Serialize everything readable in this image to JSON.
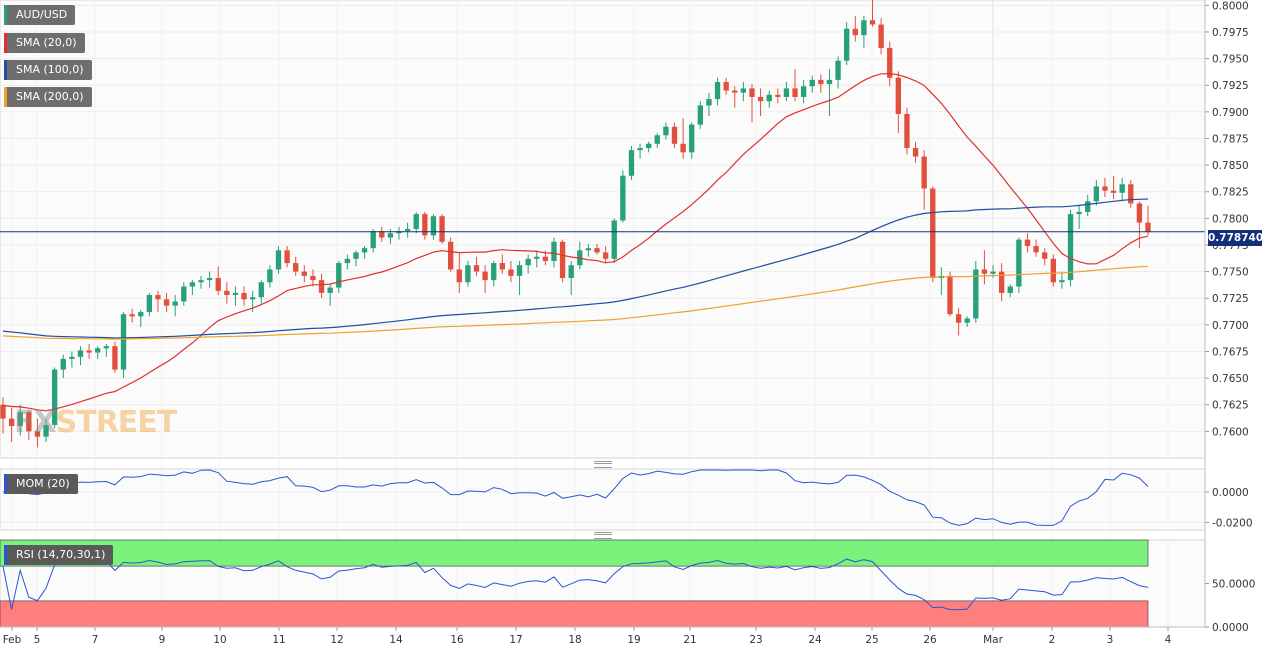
{
  "symbol": "AUD/USD",
  "legend": [
    {
      "label": "SMA (20,0)",
      "color": "#e03030"
    },
    {
      "label": "SMA (100,0)",
      "color": "#1f4f9e"
    },
    {
      "label": "SMA (200,0)",
      "color": "#f0a030"
    }
  ],
  "current_price_label": "0.778740",
  "watermark": {
    "part1": "FX",
    "part2": "STREET"
  },
  "colors": {
    "up": "#26a17a",
    "down": "#e0503c",
    "sma20": "#e03030",
    "sma100": "#1f4f9e",
    "sma200": "#f0a030",
    "mom": "#2b56d1",
    "rsi": "#2b56d1",
    "rsi_overbought": "#7cf27c",
    "rsi_oversold": "#ff7f7f"
  },
  "chart_data": [
    {
      "type": "candlestick",
      "title": "AUD/USD",
      "ylim": [
        0.7575,
        0.8005
      ],
      "yticks": [
        "0.8000",
        "0.7975",
        "0.7950",
        "0.7925",
        "0.7900",
        "0.7875",
        "0.7850",
        "0.7825",
        "0.7800",
        "0.7775",
        "0.7750",
        "0.7725",
        "0.7700",
        "0.7675",
        "0.7650",
        "0.7625",
        "0.7600"
      ],
      "xticks": [
        "Feb",
        "5",
        "7",
        "9",
        "10",
        "11",
        "12",
        "14",
        "16",
        "17",
        "18",
        "19",
        "21",
        "23",
        "24",
        "25",
        "26",
        "Mar",
        "2",
        "3",
        "4"
      ],
      "last_price": 0.77874,
      "candles": [
        [
          0.7625,
          0.7632,
          0.7598,
          0.7612
        ],
        [
          0.7612,
          0.7622,
          0.759,
          0.7605
        ],
        [
          0.7605,
          0.7625,
          0.7596,
          0.7618
        ],
        [
          0.7618,
          0.762,
          0.7592,
          0.76
        ],
        [
          0.76,
          0.7612,
          0.7585,
          0.7595
        ],
        [
          0.7595,
          0.7612,
          0.759,
          0.7606
        ],
        [
          0.7606,
          0.766,
          0.7603,
          0.7658
        ],
        [
          0.7658,
          0.7672,
          0.765,
          0.7668
        ],
        [
          0.7668,
          0.7675,
          0.766,
          0.767
        ],
        [
          0.767,
          0.768,
          0.7662,
          0.7676
        ],
        [
          0.7676,
          0.7682,
          0.7668,
          0.7674
        ],
        [
          0.7674,
          0.768,
          0.7668,
          0.7678
        ],
        [
          0.7678,
          0.7682,
          0.767,
          0.768
        ],
        [
          0.768,
          0.7684,
          0.7655,
          0.7658
        ],
        [
          0.7658,
          0.7712,
          0.765,
          0.771
        ],
        [
          0.771,
          0.7715,
          0.7702,
          0.7708
        ],
        [
          0.7708,
          0.7714,
          0.7698,
          0.7712
        ],
        [
          0.7712,
          0.773,
          0.7708,
          0.7728
        ],
        [
          0.7728,
          0.7732,
          0.7712,
          0.7724
        ],
        [
          0.7724,
          0.773,
          0.7712,
          0.7718
        ],
        [
          0.7718,
          0.7728,
          0.7708,
          0.7722
        ],
        [
          0.7722,
          0.774,
          0.7718,
          0.7736
        ],
        [
          0.7736,
          0.7742,
          0.7728,
          0.774
        ],
        [
          0.774,
          0.7746,
          0.7734,
          0.7742
        ],
        [
          0.7742,
          0.775,
          0.7735,
          0.7744
        ],
        [
          0.7744,
          0.7755,
          0.7728,
          0.7732
        ],
        [
          0.7732,
          0.774,
          0.772,
          0.7728
        ],
        [
          0.7728,
          0.7736,
          0.7718,
          0.773
        ],
        [
          0.773,
          0.7736,
          0.7718,
          0.7724
        ],
        [
          0.7724,
          0.7732,
          0.7712,
          0.7726
        ],
        [
          0.7726,
          0.7742,
          0.772,
          0.774
        ],
        [
          0.774,
          0.7756,
          0.7735,
          0.7752
        ],
        [
          0.7752,
          0.7774,
          0.7748,
          0.777
        ],
        [
          0.777,
          0.7774,
          0.7754,
          0.7758
        ],
        [
          0.7758,
          0.7764,
          0.7746,
          0.775
        ],
        [
          0.775,
          0.7756,
          0.774,
          0.7746
        ],
        [
          0.7746,
          0.7752,
          0.7736,
          0.7742
        ],
        [
          0.7742,
          0.7748,
          0.7725,
          0.773
        ],
        [
          0.773,
          0.7738,
          0.7718,
          0.7735
        ],
        [
          0.7735,
          0.776,
          0.773,
          0.7758
        ],
        [
          0.7758,
          0.7766,
          0.7752,
          0.7762
        ],
        [
          0.7762,
          0.777,
          0.7755,
          0.7768
        ],
        [
          0.7768,
          0.7774,
          0.7762,
          0.7772
        ],
        [
          0.7772,
          0.779,
          0.7768,
          0.7788
        ],
        [
          0.7788,
          0.7792,
          0.7778,
          0.7782
        ],
        [
          0.7782,
          0.779,
          0.7776,
          0.7786
        ],
        [
          0.7786,
          0.7792,
          0.778,
          0.7788
        ],
        [
          0.7788,
          0.7796,
          0.7782,
          0.779
        ],
        [
          0.779,
          0.7806,
          0.7786,
          0.7804
        ],
        [
          0.7804,
          0.7806,
          0.778,
          0.7784
        ],
        [
          0.7784,
          0.7804,
          0.778,
          0.7802
        ],
        [
          0.7802,
          0.7804,
          0.7776,
          0.7778
        ],
        [
          0.7778,
          0.7782,
          0.775,
          0.7752
        ],
        [
          0.7752,
          0.7768,
          0.773,
          0.774
        ],
        [
          0.774,
          0.776,
          0.7736,
          0.7756
        ],
        [
          0.7756,
          0.7764,
          0.7746,
          0.775
        ],
        [
          0.775,
          0.7756,
          0.773,
          0.7742
        ],
        [
          0.7742,
          0.776,
          0.7736,
          0.7758
        ],
        [
          0.7758,
          0.7766,
          0.7748,
          0.7752
        ],
        [
          0.7752,
          0.776,
          0.774,
          0.7746
        ],
        [
          0.7746,
          0.776,
          0.7728,
          0.7756
        ],
        [
          0.7756,
          0.7766,
          0.7748,
          0.7762
        ],
        [
          0.7762,
          0.777,
          0.7754,
          0.7764
        ],
        [
          0.7764,
          0.777,
          0.7756,
          0.776
        ],
        [
          0.776,
          0.7782,
          0.7754,
          0.7778
        ],
        [
          0.7778,
          0.778,
          0.774,
          0.7744
        ],
        [
          0.7744,
          0.776,
          0.7728,
          0.7756
        ],
        [
          0.7756,
          0.7778,
          0.7752,
          0.777
        ],
        [
          0.777,
          0.7776,
          0.7764,
          0.7772
        ],
        [
          0.7772,
          0.7776,
          0.7766,
          0.7768
        ],
        [
          0.7768,
          0.7774,
          0.7758,
          0.7762
        ],
        [
          0.7762,
          0.78,
          0.7758,
          0.7798
        ],
        [
          0.7798,
          0.7845,
          0.7796,
          0.784
        ],
        [
          0.784,
          0.7868,
          0.7836,
          0.7864
        ],
        [
          0.7864,
          0.787,
          0.7856,
          0.7866
        ],
        [
          0.7866,
          0.7872,
          0.7862,
          0.787
        ],
        [
          0.787,
          0.788,
          0.7866,
          0.7878
        ],
        [
          0.7878,
          0.789,
          0.7874,
          0.7886
        ],
        [
          0.7886,
          0.789,
          0.7866,
          0.787
        ],
        [
          0.787,
          0.7894,
          0.7856,
          0.7862
        ],
        [
          0.7862,
          0.789,
          0.7856,
          0.7888
        ],
        [
          0.7888,
          0.791,
          0.7884,
          0.7906
        ],
        [
          0.7906,
          0.7918,
          0.7896,
          0.7912
        ],
        [
          0.7912,
          0.7932,
          0.7906,
          0.7928
        ],
        [
          0.7928,
          0.7932,
          0.7916,
          0.792
        ],
        [
          0.792,
          0.7924,
          0.7904,
          0.7918
        ],
        [
          0.7918,
          0.7928,
          0.791,
          0.7922
        ],
        [
          0.7922,
          0.7926,
          0.789,
          0.7914
        ],
        [
          0.7914,
          0.7922,
          0.7896,
          0.791
        ],
        [
          0.791,
          0.792,
          0.7904,
          0.7916
        ],
        [
          0.7916,
          0.7922,
          0.7908,
          0.7914
        ],
        [
          0.7914,
          0.7928,
          0.791,
          0.7922
        ],
        [
          0.7922,
          0.794,
          0.791,
          0.7914
        ],
        [
          0.7914,
          0.793,
          0.7908,
          0.7924
        ],
        [
          0.7924,
          0.7934,
          0.7918,
          0.793
        ],
        [
          0.793,
          0.7935,
          0.7918,
          0.7926
        ],
        [
          0.7926,
          0.794,
          0.7896,
          0.793
        ],
        [
          0.793,
          0.7952,
          0.7922,
          0.7948
        ],
        [
          0.7948,
          0.7984,
          0.7944,
          0.7978
        ],
        [
          0.7978,
          0.799,
          0.7966,
          0.7972
        ],
        [
          0.7972,
          0.799,
          0.796,
          0.7986
        ],
        [
          0.7986,
          0.8008,
          0.798,
          0.7982
        ],
        [
          0.7982,
          0.7988,
          0.7954,
          0.796
        ],
        [
          0.796,
          0.7966,
          0.7924,
          0.7932
        ],
        [
          0.7932,
          0.7938,
          0.788,
          0.7898
        ],
        [
          0.7898,
          0.7904,
          0.786,
          0.7866
        ],
        [
          0.7866,
          0.7872,
          0.7852,
          0.7858
        ],
        [
          0.7858,
          0.7864,
          0.7808,
          0.7828
        ],
        [
          0.7828,
          0.783,
          0.774,
          0.7744
        ],
        [
          0.7744,
          0.7754,
          0.7728,
          0.7746
        ],
        [
          0.7746,
          0.775,
          0.7708,
          0.771
        ],
        [
          0.771,
          0.7716,
          0.769,
          0.7702
        ],
        [
          0.7702,
          0.7708,
          0.7698,
          0.7706
        ],
        [
          0.7706,
          0.776,
          0.7702,
          0.7752
        ],
        [
          0.7752,
          0.777,
          0.7738,
          0.7748
        ],
        [
          0.7748,
          0.7756,
          0.7744,
          0.775
        ],
        [
          0.775,
          0.7758,
          0.7722,
          0.773
        ],
        [
          0.773,
          0.7738,
          0.7726,
          0.7736
        ],
        [
          0.7736,
          0.7782,
          0.773,
          0.778
        ],
        [
          0.778,
          0.7786,
          0.7768,
          0.7774
        ],
        [
          0.7774,
          0.778,
          0.7764,
          0.7768
        ],
        [
          0.7768,
          0.7772,
          0.7756,
          0.7762
        ],
        [
          0.7762,
          0.7766,
          0.7736,
          0.774
        ],
        [
          0.774,
          0.775,
          0.7734,
          0.7742
        ],
        [
          0.7742,
          0.7808,
          0.7736,
          0.7804
        ],
        [
          0.7804,
          0.7812,
          0.779,
          0.7806
        ],
        [
          0.7806,
          0.7822,
          0.7802,
          0.7816
        ],
        [
          0.7816,
          0.7836,
          0.7812,
          0.783
        ],
        [
          0.783,
          0.7838,
          0.782,
          0.7826
        ],
        [
          0.7826,
          0.784,
          0.7818,
          0.7824
        ],
        [
          0.7824,
          0.7838,
          0.7816,
          0.7832
        ],
        [
          0.7832,
          0.7836,
          0.781,
          0.7814
        ],
        [
          0.7814,
          0.7816,
          0.7772,
          0.7796
        ],
        [
          0.7796,
          0.7812,
          0.7784,
          0.7787
        ]
      ]
    },
    {
      "type": "line",
      "title": "MOM (20)",
      "ylim": [
        -0.025,
        0.015
      ],
      "yticks": [
        "0.0000",
        "-0.0200"
      ]
    },
    {
      "type": "line",
      "title": "RSI (14,70,30,1)",
      "ylim": [
        0,
        100
      ],
      "yticks": [
        "50.0000",
        "0.0000"
      ],
      "bands": {
        "overbought": 70,
        "oversold": 30
      }
    }
  ]
}
